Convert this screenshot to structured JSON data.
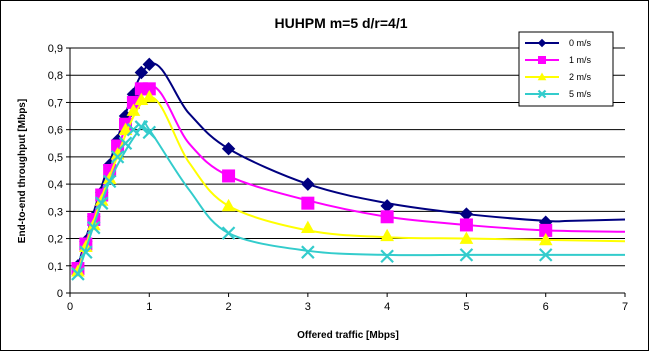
{
  "chart_data": {
    "type": "line",
    "title": "HUHPM m=5 d/r=4/1",
    "xlabel": "Offered traffic [Mbps]",
    "ylabel": "End-to-end throughput [Mbps]",
    "xlim": [
      0,
      7
    ],
    "ylim": [
      0,
      0.9
    ],
    "x_ticks": [
      "0",
      "1",
      "2",
      "3",
      "4",
      "5",
      "6",
      "7"
    ],
    "y_ticks": [
      "0",
      "0,1",
      "0,2",
      "0,3",
      "0,4",
      "0,5",
      "0,6",
      "0,7",
      "0,8",
      "0,9"
    ],
    "grid": "horizontal",
    "legend_position": "top-right",
    "series": [
      {
        "name": "0 m/s",
        "color": "#000080",
        "marker": "diamond",
        "points": [
          [
            0.1,
            0.1
          ],
          [
            0.2,
            0.19
          ],
          [
            0.3,
            0.28
          ],
          [
            0.4,
            0.37
          ],
          [
            0.5,
            0.47
          ],
          [
            0.6,
            0.56
          ],
          [
            0.7,
            0.65
          ],
          [
            0.8,
            0.73
          ],
          [
            0.9,
            0.81
          ],
          [
            1.0,
            0.84
          ],
          [
            2,
            0.53
          ],
          [
            3,
            0.4
          ],
          [
            4,
            0.32
          ],
          [
            5,
            0.29
          ],
          [
            6,
            0.26
          ]
        ],
        "curve": [
          [
            0.1,
            0.1
          ],
          [
            0.5,
            0.48
          ],
          [
            1.0,
            0.84
          ],
          [
            1.5,
            0.66
          ],
          [
            2,
            0.53
          ],
          [
            3,
            0.4
          ],
          [
            4,
            0.33
          ],
          [
            5,
            0.29
          ],
          [
            6,
            0.265
          ],
          [
            6.3,
            0.265
          ],
          [
            7,
            0.27
          ]
        ]
      },
      {
        "name": "1 m/s",
        "color": "#FF00FF",
        "marker": "square",
        "points": [
          [
            0.1,
            0.09
          ],
          [
            0.2,
            0.18
          ],
          [
            0.3,
            0.27
          ],
          [
            0.4,
            0.36
          ],
          [
            0.5,
            0.45
          ],
          [
            0.6,
            0.54
          ],
          [
            0.7,
            0.62
          ],
          [
            0.8,
            0.7
          ],
          [
            0.9,
            0.75
          ],
          [
            1.0,
            0.75
          ],
          [
            2,
            0.43
          ],
          [
            3,
            0.33
          ],
          [
            4,
            0.28
          ],
          [
            5,
            0.25
          ],
          [
            6,
            0.23
          ]
        ],
        "curve": [
          [
            0.1,
            0.09
          ],
          [
            0.5,
            0.45
          ],
          [
            1.0,
            0.76
          ],
          [
            1.5,
            0.55
          ],
          [
            2,
            0.43
          ],
          [
            3,
            0.34
          ],
          [
            4,
            0.28
          ],
          [
            5,
            0.25
          ],
          [
            6,
            0.23
          ],
          [
            7,
            0.225
          ]
        ]
      },
      {
        "name": "2 m/s",
        "color": "#FFFF00",
        "marker": "triangle",
        "points": [
          [
            0.1,
            0.08
          ],
          [
            0.2,
            0.17
          ],
          [
            0.3,
            0.25
          ],
          [
            0.4,
            0.34
          ],
          [
            0.5,
            0.42
          ],
          [
            0.6,
            0.51
          ],
          [
            0.7,
            0.6
          ],
          [
            0.8,
            0.67
          ],
          [
            0.9,
            0.71
          ],
          [
            1.0,
            0.72
          ],
          [
            2,
            0.32
          ],
          [
            3,
            0.24
          ],
          [
            4,
            0.21
          ],
          [
            5,
            0.2
          ],
          [
            6,
            0.195
          ]
        ],
        "curve": [
          [
            0.1,
            0.08
          ],
          [
            0.5,
            0.43
          ],
          [
            1.0,
            0.72
          ],
          [
            1.5,
            0.48
          ],
          [
            2,
            0.32
          ],
          [
            3,
            0.23
          ],
          [
            4,
            0.205
          ],
          [
            5,
            0.2
          ],
          [
            6,
            0.195
          ],
          [
            7,
            0.19
          ]
        ]
      },
      {
        "name": "5 m/s",
        "color": "#33CCCC",
        "marker": "x",
        "points": [
          [
            0.1,
            0.07
          ],
          [
            0.2,
            0.15
          ],
          [
            0.3,
            0.24
          ],
          [
            0.4,
            0.33
          ],
          [
            0.5,
            0.41
          ],
          [
            0.6,
            0.5
          ],
          [
            0.7,
            0.55
          ],
          [
            0.8,
            0.6
          ],
          [
            0.9,
            0.61
          ],
          [
            1.0,
            0.59
          ],
          [
            2,
            0.22
          ],
          [
            3,
            0.15
          ],
          [
            4,
            0.135
          ],
          [
            5,
            0.14
          ],
          [
            6,
            0.14
          ]
        ],
        "curve": [
          [
            0.1,
            0.07
          ],
          [
            0.5,
            0.41
          ],
          [
            0.9,
            0.61
          ],
          [
            1.0,
            0.6
          ],
          [
            1.5,
            0.38
          ],
          [
            2,
            0.22
          ],
          [
            3,
            0.155
          ],
          [
            4,
            0.14
          ],
          [
            5,
            0.14
          ],
          [
            7,
            0.14
          ]
        ]
      }
    ]
  }
}
